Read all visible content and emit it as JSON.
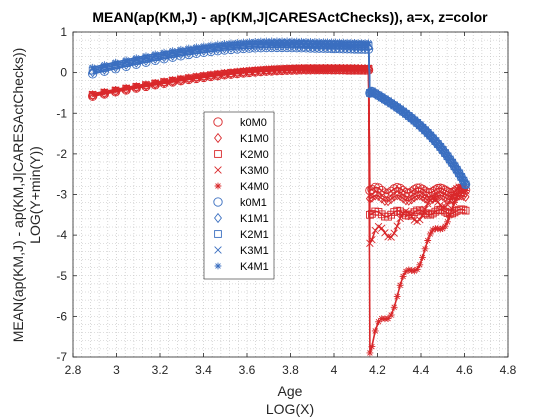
{
  "chart_data": {
    "type": "scatter",
    "title": "MEAN(ap(KM,J) - ap(KM,J|CARESActChecks)), a=x, z=color",
    "xlabel": [
      "Age",
      "LOG(X)"
    ],
    "ylabel": [
      "MEAN(ap(KM,J) - ap(KM,J|CARESActChecks))",
      "LOG(Y+min(Y))"
    ],
    "xlim": [
      2.8,
      4.8
    ],
    "ylim": [
      -7,
      1
    ],
    "xticks": [
      2.8,
      3,
      3.2,
      3.4,
      3.6,
      3.8,
      4,
      4.2,
      4.4,
      4.6,
      4.8
    ],
    "yticks": [
      -7,
      -6,
      -5,
      -4,
      -3,
      -2,
      -1,
      0,
      1
    ],
    "xtick_labels": [
      "2.8",
      "3",
      "3.2",
      "3.4",
      "3.6",
      "3.8",
      "4",
      "4.2",
      "4.4",
      "4.6",
      "4.8"
    ],
    "ytick_labels": [
      "-7",
      "-6",
      "-5",
      "-4",
      "-3",
      "-2",
      "-1",
      "0",
      "1"
    ],
    "grid": "minor dotted",
    "legend_position": "inside-left-center",
    "colors": {
      "red": "#d9282b",
      "blue": "#3b6fc0"
    },
    "series": [
      {
        "name": "k0M0",
        "marker": "circle",
        "color": "red",
        "group": 0,
        "tail": -2.9
      },
      {
        "name": "K1M0",
        "marker": "diamond",
        "color": "red",
        "group": 0,
        "tail": -3.1
      },
      {
        "name": "K2M0",
        "marker": "square",
        "color": "red",
        "group": 0,
        "tail": -3.5
      },
      {
        "name": "K3M0",
        "marker": "x",
        "color": "red",
        "group": 0,
        "tail": -4.2
      },
      {
        "name": "K4M0",
        "marker": "asterisk",
        "color": "red",
        "group": 0,
        "tail": -6.9
      },
      {
        "name": "k0M1",
        "marker": "circle",
        "color": "blue",
        "group": 1,
        "tail": -2.7
      },
      {
        "name": "K1M1",
        "marker": "diamond",
        "color": "blue",
        "group": 1,
        "tail": -2.7
      },
      {
        "name": "K2M1",
        "marker": "square",
        "color": "blue",
        "group": 1,
        "tail": -2.7
      },
      {
        "name": "K3M1",
        "marker": "x",
        "color": "blue",
        "group": 1,
        "tail": -2.7
      },
      {
        "name": "K4M1",
        "marker": "asterisk",
        "color": "blue",
        "group": 1,
        "tail": -2.7
      }
    ]
  }
}
